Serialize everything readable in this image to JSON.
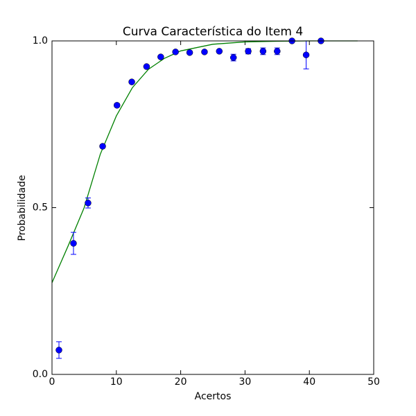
{
  "chart_data": {
    "type": "scatter",
    "title": "Curva Característica do Item 4",
    "xlabel": "Acertos",
    "ylabel": "Probabilidade",
    "xlim": [
      0,
      50
    ],
    "ylim": [
      0,
      1
    ],
    "xticks": [
      0,
      10,
      20,
      30,
      40,
      50
    ],
    "yticks": [
      {
        "value": 0,
        "label": "0.0"
      },
      {
        "value": 0.5,
        "label": "0.5"
      },
      {
        "value": 1,
        "label": "1.0"
      }
    ],
    "grid": false,
    "series": [
      {
        "type": "errorbar",
        "color": "#0000ff",
        "x": [
          1.08,
          3.34,
          5.6,
          7.87,
          10.1,
          12.4,
          14.7,
          16.9,
          19.2,
          21.4,
          23.7,
          26.0,
          28.2,
          30.5,
          32.8,
          35.0,
          37.3,
          39.5,
          41.8
        ],
        "values": [
          0.073,
          0.393,
          0.514,
          0.684,
          0.807,
          0.877,
          0.923,
          0.952,
          0.967,
          0.965,
          0.967,
          0.969,
          0.95,
          0.969,
          0.969,
          0.969,
          1.0,
          0.958,
          1.0
        ],
        "errors": [
          0.025,
          0.033,
          0.015,
          0.005,
          0.005,
          0.004,
          0.004,
          0.004,
          0.004,
          0.004,
          0.004,
          0.004,
          0.01,
          0.008,
          0.01,
          0.01,
          0,
          0.042,
          0
        ]
      },
      {
        "type": "line",
        "color": "#008000",
        "x": [
          0,
          2.5,
          5,
          7.5,
          10,
          12.5,
          15,
          17.5,
          20,
          25,
          30,
          35,
          40,
          47.5
        ],
        "values": [
          0.275,
          0.385,
          0.5,
          0.66,
          0.775,
          0.86,
          0.915,
          0.948,
          0.97,
          0.99,
          0.997,
          0.999,
          1.0,
          1.0
        ]
      }
    ]
  }
}
